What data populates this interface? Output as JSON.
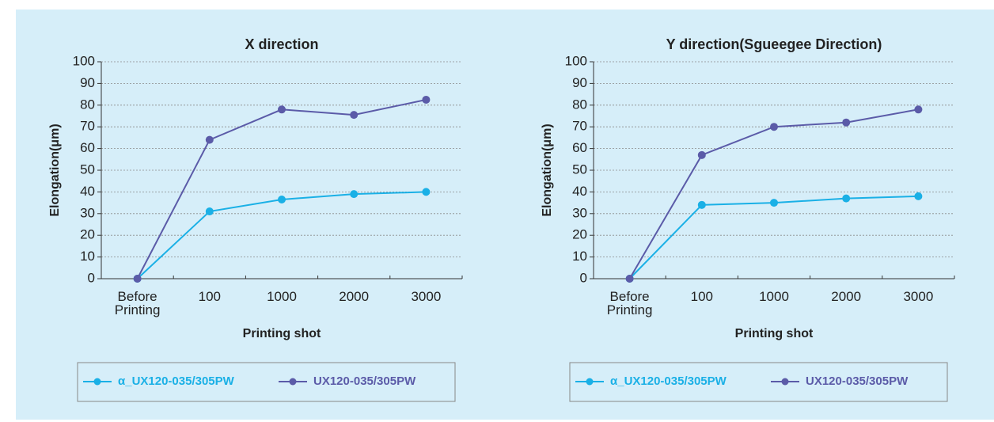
{
  "chart_data": [
    {
      "type": "line",
      "title": "X direction",
      "x_label": "Printing shot",
      "y_label": "Elongation(μm)",
      "categories": [
        "Before Printing",
        "100",
        "1000",
        "2000",
        "3000"
      ],
      "series": [
        {
          "name": "α_UX120-035/305PW",
          "color": "#1ab0e6",
          "values": [
            0,
            31,
            36.5,
            39,
            40
          ]
        },
        {
          "name": "UX120-035/305PW",
          "color": "#5b5ba8",
          "values": [
            0,
            64,
            78,
            75.5,
            82.5
          ]
        }
      ],
      "ylim": [
        0,
        100
      ],
      "yticks": [
        0,
        10,
        20,
        30,
        40,
        50,
        60,
        70,
        80,
        90,
        100
      ],
      "grid": true,
      "legend": "bottom"
    },
    {
      "type": "line",
      "title": "Y direction(Sgueegee Direction)",
      "x_label": "Printing shot",
      "y_label": "Elongation(μm)",
      "categories": [
        "Before Printing",
        "100",
        "1000",
        "2000",
        "3000"
      ],
      "series": [
        {
          "name": "α_UX120-035/305PW",
          "color": "#1ab0e6",
          "values": [
            0,
            34,
            35,
            37,
            38
          ]
        },
        {
          "name": "UX120-035/305PW",
          "color": "#5b5ba8",
          "values": [
            0,
            57,
            70,
            72,
            78
          ]
        }
      ],
      "ylim": [
        0,
        100
      ],
      "yticks": [
        0,
        10,
        20,
        30,
        40,
        50,
        60,
        70,
        80,
        90,
        100
      ],
      "grid": true,
      "legend": "bottom"
    }
  ]
}
